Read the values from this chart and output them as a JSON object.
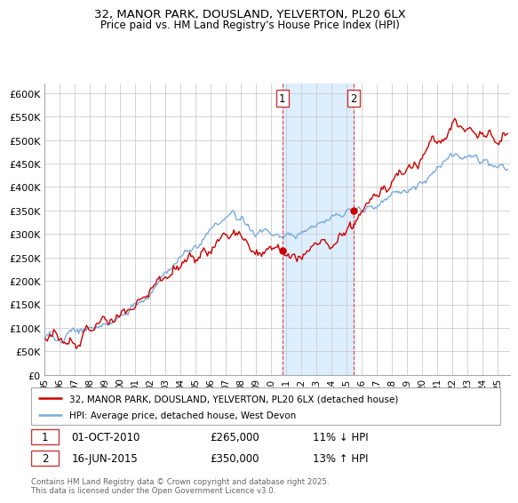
{
  "title": "32, MANOR PARK, DOUSLAND, YELVERTON, PL20 6LX",
  "subtitle": "Price paid vs. HM Land Registry's House Price Index (HPI)",
  "legend_line1": "32, MANOR PARK, DOUSLAND, YELVERTON, PL20 6LX (detached house)",
  "legend_line2": "HPI: Average price, detached house, West Devon",
  "annotation1_label": "1",
  "annotation1_date": "01-OCT-2010",
  "annotation1_price": "£265,000",
  "annotation1_hpi": "11% ↓ HPI",
  "annotation2_label": "2",
  "annotation2_date": "16-JUN-2015",
  "annotation2_price": "£350,000",
  "annotation2_hpi": "13% ↑ HPI",
  "footer": "Contains HM Land Registry data © Crown copyright and database right 2025.\nThis data is licensed under the Open Government Licence v3.0.",
  "red_color": "#cc0000",
  "blue_color": "#7aabdb",
  "vline_color": "#dd4444",
  "vspan_color": "#ddeeff",
  "ylim": [
    0,
    620000
  ],
  "yticks": [
    0,
    50000,
    100000,
    150000,
    200000,
    250000,
    300000,
    350000,
    400000,
    450000,
    500000,
    550000,
    600000
  ],
  "ytick_labels": [
    "£0",
    "£50K",
    "£100K",
    "£150K",
    "£200K",
    "£250K",
    "£300K",
    "£350K",
    "£400K",
    "£450K",
    "£500K",
    "£550K",
    "£600K"
  ],
  "sale1_x": 2010.75,
  "sale1_y": 265000,
  "sale2_x": 2015.46,
  "sale2_y": 350000,
  "xmin": 1995.0,
  "xmax": 2025.8
}
